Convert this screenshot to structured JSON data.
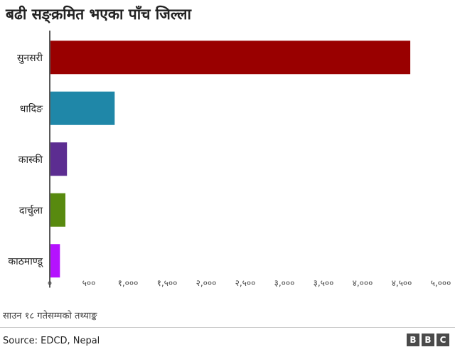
{
  "chart_data": {
    "type": "bar",
    "orientation": "horizontal",
    "title": "बढी सङ्क्रमित भएका पाँच जिल्ला",
    "categories": [
      "सुनसरी",
      "धादिङ",
      "कास्की",
      "दार्चुला",
      "काठमाण्डू"
    ],
    "values": [
      4610,
      830,
      220,
      200,
      130
    ],
    "colors": [
      "#990000",
      "#1f87a8",
      "#5c2d91",
      "#588a0f",
      "#b512ff"
    ],
    "xlim": [
      0,
      5000
    ],
    "ticks": [
      0,
      500,
      1000,
      1500,
      2000,
      2500,
      3000,
      3500,
      4000,
      4500,
      5000
    ],
    "tick_labels": [
      "०",
      "५००",
      "१,०००",
      "१,५००",
      "२,०००",
      "२,५००",
      "३,०००",
      "३,५००",
      "४,०००",
      "४,५००",
      "५,०००"
    ],
    "grid": false,
    "xlabel": "",
    "ylabel": ""
  },
  "footer": {
    "note": "साउन १८ गतेसम्मको तथ्याङ्क",
    "source": "Source: EDCD, Nepal",
    "logo_letters": [
      "B",
      "B",
      "C"
    ]
  }
}
